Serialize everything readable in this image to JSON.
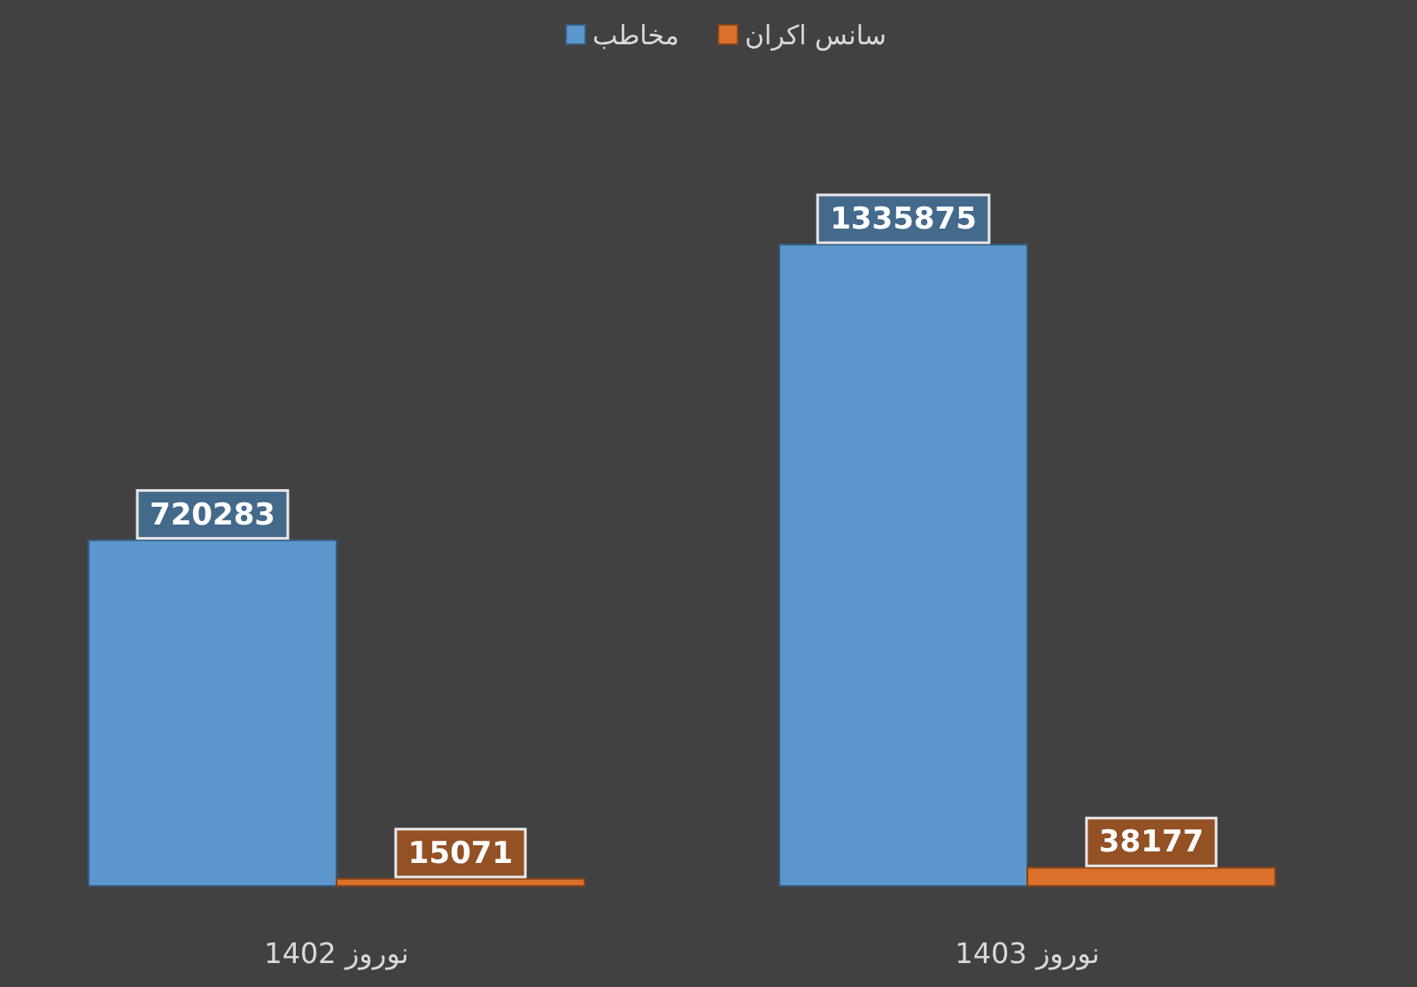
{
  "chart_data": {
    "type": "bar",
    "categories": [
      "نوروز 1402",
      "نوروز 1403"
    ],
    "series": [
      {
        "name": "مخاطب",
        "color": "#5b96cc",
        "values": [
          720283,
          1335875
        ]
      },
      {
        "name": "سانس اکران",
        "color": "#d9712b",
        "values": [
          15071,
          38177
        ]
      }
    ],
    "data_labels": true,
    "legend": "top"
  }
}
